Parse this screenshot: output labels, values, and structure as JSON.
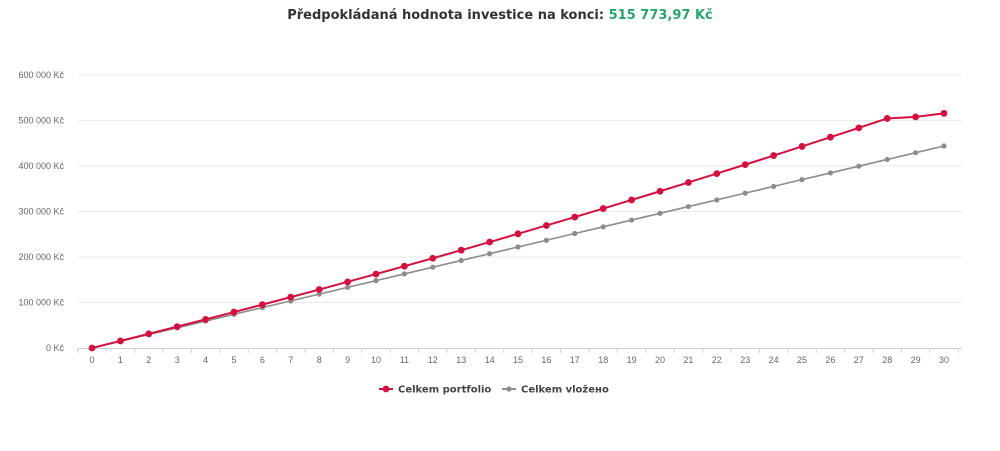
{
  "header": {
    "title_prefix": "Předpokládaná hodnota investice na konci:",
    "title_value": "515 773,97 Kč"
  },
  "colors": {
    "portfolio": "#d5103e",
    "vlozeno": "#8c8c8c",
    "accent_green": "#27a56b",
    "grid": "#e9e9e9",
    "axis": "#c8d2dc"
  },
  "chart_data": {
    "type": "line",
    "x": [
      0,
      1,
      2,
      3,
      4,
      5,
      6,
      7,
      8,
      9,
      10,
      11,
      12,
      13,
      14,
      15,
      16,
      17,
      18,
      19,
      20,
      21,
      22,
      23,
      24,
      25,
      26,
      27,
      28,
      29,
      30
    ],
    "x_tick_labels": [
      "0",
      "1",
      "2",
      "3",
      "4",
      "5",
      "6",
      "7",
      "8",
      "9",
      "10",
      "11",
      "12",
      "13",
      "14",
      "15",
      "16",
      "17",
      "18",
      "19",
      "20",
      "21",
      "22",
      "23",
      "24",
      "25",
      "26",
      "27",
      "28",
      "29",
      "30"
    ],
    "y_tick_labels": [
      "0 Kč",
      "100 000 Kč",
      "200 000 Kč",
      "300 000 Kč",
      "400 000 Kč",
      "500 000 Kč",
      "600 000 Kč"
    ],
    "y_ticks": [
      0,
      100000,
      200000,
      300000,
      400000,
      500000,
      600000
    ],
    "ylim": [
      0,
      600000
    ],
    "grid": true,
    "legend_position": "bottom-center",
    "series": [
      {
        "name": "Celkem portfolio",
        "color": "#d5103e",
        "values": [
          0,
          15500,
          31200,
          47000,
          62900,
          79000,
          95300,
          111800,
          128500,
          145400,
          162500,
          179800,
          197300,
          215000,
          232900,
          251000,
          269300,
          287800,
          306500,
          325400,
          344500,
          363800,
          383300,
          403000,
          422900,
          443000,
          463300,
          483800,
          504500,
          508000,
          515774
        ]
      },
      {
        "name": "Celkem vložено",
        "color": "#8c8c8c",
        "values": [
          0,
          14800,
          29600,
          44400,
          59200,
          74000,
          88800,
          103600,
          118400,
          133200,
          148000,
          162800,
          177600,
          192400,
          207200,
          222000,
          236800,
          251600,
          266400,
          281200,
          296000,
          310800,
          325600,
          340400,
          355200,
          370000,
          384800,
          399600,
          414400,
          429200,
          444000
        ]
      }
    ]
  }
}
